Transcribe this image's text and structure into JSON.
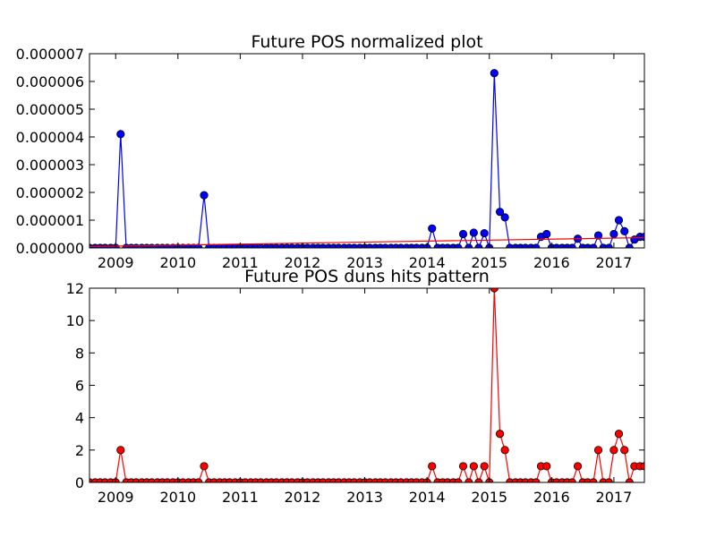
{
  "chart_data": [
    {
      "type": "line",
      "title": "Future POS normalized plot",
      "xlabel": "",
      "ylabel": "",
      "xlim": [
        2008.58,
        2017.49
      ],
      "ylim": [
        0,
        7e-06
      ],
      "x_ticks": [
        2009,
        2010,
        2011,
        2012,
        2013,
        2014,
        2015,
        2016,
        2017
      ],
      "x_tick_labels": [
        "2009",
        "2010",
        "2011",
        "2012",
        "2013",
        "2014",
        "2015",
        "2016",
        "2017"
      ],
      "y_ticks": [
        0,
        1e-06,
        2e-06,
        3e-06,
        4e-06,
        5e-06,
        6e-06,
        7e-06
      ],
      "y_tick_labels": [
        "0.000000",
        "0.000001",
        "0.000002",
        "0.000003",
        "0.000004",
        "0.000005",
        "0.000006",
        "0.000007"
      ],
      "grid": false,
      "series": [
        {
          "color": "#0000ff",
          "marker": "circle",
          "x": [
            2008.58,
            2008.67,
            2008.75,
            2008.83,
            2008.92,
            2009.0,
            2009.08,
            2009.17,
            2009.25,
            2009.33,
            2009.42,
            2009.5,
            2009.58,
            2009.67,
            2009.75,
            2009.83,
            2009.92,
            2010.0,
            2010.08,
            2010.17,
            2010.25,
            2010.33,
            2010.42,
            2010.5,
            2010.58,
            2010.67,
            2010.75,
            2010.83,
            2010.92,
            2011.0,
            2011.08,
            2011.17,
            2011.25,
            2011.33,
            2011.42,
            2011.5,
            2011.58,
            2011.67,
            2011.75,
            2011.83,
            2011.92,
            2012.0,
            2012.08,
            2012.17,
            2012.25,
            2012.33,
            2012.42,
            2012.5,
            2012.58,
            2012.67,
            2012.75,
            2012.83,
            2012.92,
            2013.0,
            2013.08,
            2013.17,
            2013.25,
            2013.33,
            2013.42,
            2013.5,
            2013.58,
            2013.67,
            2013.75,
            2013.83,
            2013.92,
            2014.0,
            2014.08,
            2014.17,
            2014.25,
            2014.33,
            2014.42,
            2014.5,
            2014.58,
            2014.67,
            2014.75,
            2014.83,
            2014.92,
            2015.0,
            2015.08,
            2015.17,
            2015.25,
            2015.33,
            2015.42,
            2015.5,
            2015.58,
            2015.67,
            2015.75,
            2015.83,
            2015.92,
            2016.0,
            2016.08,
            2016.17,
            2016.25,
            2016.33,
            2016.42,
            2016.5,
            2016.58,
            2016.67,
            2016.75,
            2016.83,
            2016.92,
            2017.0,
            2017.08,
            2017.17,
            2017.25,
            2017.33,
            2017.42,
            2017.49
          ],
          "values": [
            0,
            0,
            0,
            0,
            0,
            0,
            4.1e-06,
            0,
            0,
            0,
            0,
            0,
            0,
            0,
            0,
            0,
            0,
            0,
            0,
            0,
            0,
            0,
            1.9e-06,
            0,
            0,
            0,
            0,
            0,
            0,
            0,
            0,
            0,
            0,
            0,
            0,
            0,
            0,
            0,
            0,
            0,
            0,
            0,
            0,
            0,
            0,
            0,
            0,
            0,
            0,
            0,
            0,
            0,
            0,
            0,
            0,
            0,
            0,
            0,
            0,
            0,
            0,
            0,
            0,
            0,
            0,
            0,
            7e-07,
            0,
            0,
            0,
            0,
            0,
            5e-07,
            0,
            5.5e-07,
            0,
            5.3e-07,
            0,
            6.3e-06,
            1.3e-06,
            1.1e-06,
            0,
            0,
            0,
            0,
            0,
            0,
            4e-07,
            5e-07,
            0,
            0,
            0,
            0,
            0,
            3.3e-07,
            0,
            0,
            0,
            4.5e-07,
            0,
            0,
            5e-07,
            1e-06,
            6e-07,
            0,
            3e-07,
            4e-07,
            4e-07
          ]
        },
        {
          "color": "#ff0000",
          "marker": "none",
          "x": [
            2008.58,
            2017.49
          ],
          "values": [
            5e-08,
            3.7e-07
          ]
        }
      ]
    },
    {
      "type": "line",
      "title": "Future POS duns hits pattern",
      "xlabel": "",
      "ylabel": "",
      "xlim": [
        2008.58,
        2017.49
      ],
      "ylim": [
        0,
        12
      ],
      "x_ticks": [
        2009,
        2010,
        2011,
        2012,
        2013,
        2014,
        2015,
        2016,
        2017
      ],
      "x_tick_labels": [
        "2009",
        "2010",
        "2011",
        "2012",
        "2013",
        "2014",
        "2015",
        "2016",
        "2017"
      ],
      "y_ticks": [
        0,
        2,
        4,
        6,
        8,
        10,
        12
      ],
      "y_tick_labels": [
        "0",
        "2",
        "4",
        "6",
        "8",
        "10",
        "12"
      ],
      "grid": false,
      "series": [
        {
          "color": "#ff0000",
          "marker": "circle",
          "x": [
            2008.58,
            2008.67,
            2008.75,
            2008.83,
            2008.92,
            2009.0,
            2009.08,
            2009.17,
            2009.25,
            2009.33,
            2009.42,
            2009.5,
            2009.58,
            2009.67,
            2009.75,
            2009.83,
            2009.92,
            2010.0,
            2010.08,
            2010.17,
            2010.25,
            2010.33,
            2010.42,
            2010.5,
            2010.58,
            2010.67,
            2010.75,
            2010.83,
            2010.92,
            2011.0,
            2011.08,
            2011.17,
            2011.25,
            2011.33,
            2011.42,
            2011.5,
            2011.58,
            2011.67,
            2011.75,
            2011.83,
            2011.92,
            2012.0,
            2012.08,
            2012.17,
            2012.25,
            2012.33,
            2012.42,
            2012.5,
            2012.58,
            2012.67,
            2012.75,
            2012.83,
            2012.92,
            2013.0,
            2013.08,
            2013.17,
            2013.25,
            2013.33,
            2013.42,
            2013.5,
            2013.58,
            2013.67,
            2013.75,
            2013.83,
            2013.92,
            2014.0,
            2014.08,
            2014.17,
            2014.25,
            2014.33,
            2014.42,
            2014.5,
            2014.58,
            2014.67,
            2014.75,
            2014.83,
            2014.92,
            2015.0,
            2015.08,
            2015.17,
            2015.25,
            2015.33,
            2015.42,
            2015.5,
            2015.58,
            2015.67,
            2015.75,
            2015.83,
            2015.92,
            2016.0,
            2016.08,
            2016.17,
            2016.25,
            2016.33,
            2016.42,
            2016.5,
            2016.58,
            2016.67,
            2016.75,
            2016.83,
            2016.92,
            2017.0,
            2017.08,
            2017.17,
            2017.25,
            2017.33,
            2017.42,
            2017.49
          ],
          "values": [
            0,
            0,
            0,
            0,
            0,
            0,
            2,
            0,
            0,
            0,
            0,
            0,
            0,
            0,
            0,
            0,
            0,
            0,
            0,
            0,
            0,
            0,
            1,
            0,
            0,
            0,
            0,
            0,
            0,
            0,
            0,
            0,
            0,
            0,
            0,
            0,
            0,
            0,
            0,
            0,
            0,
            0,
            0,
            0,
            0,
            0,
            0,
            0,
            0,
            0,
            0,
            0,
            0,
            0,
            0,
            0,
            0,
            0,
            0,
            0,
            0,
            0,
            0,
            0,
            0,
            0,
            1,
            0,
            0,
            0,
            0,
            0,
            1,
            0,
            1,
            0,
            1,
            0,
            12,
            3,
            2,
            0,
            0,
            0,
            0,
            0,
            0,
            1,
            1,
            0,
            0,
            0,
            0,
            0,
            1,
            0,
            0,
            0,
            2,
            0,
            0,
            2,
            3,
            2,
            0,
            1,
            1,
            1
          ]
        }
      ]
    }
  ]
}
